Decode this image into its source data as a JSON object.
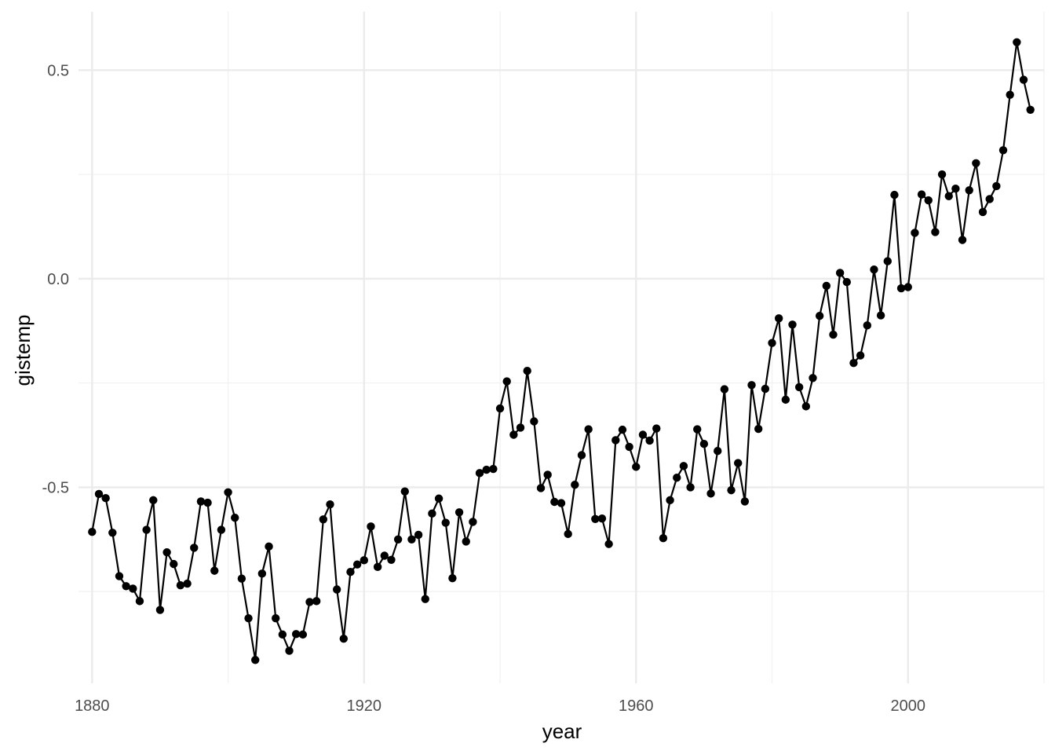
{
  "chart_data": {
    "type": "line",
    "title": "",
    "xlabel": "year",
    "ylabel": "gistemp",
    "xlim": [
      1878,
      2020
    ],
    "ylim": [
      -0.97,
      0.64
    ],
    "x_ticks": [
      1880,
      1920,
      1960,
      2000
    ],
    "x_tick_labels": [
      "1880",
      "1920",
      "1960",
      "2000"
    ],
    "x_minor_ticks": [
      1900,
      1940,
      1980,
      2020
    ],
    "y_ticks": [
      0.5,
      0.0,
      -0.5
    ],
    "y_tick_labels": [
      "0.5",
      "0.0",
      "-0.5"
    ],
    "y_minor_ticks": [
      0.25,
      -0.25,
      -0.75
    ],
    "grid": true,
    "points_shown": true,
    "colors": {
      "line": "#000000",
      "point": "#000000",
      "grid_major": "#ebebeb",
      "grid_minor": "#f2f2f2"
    },
    "series": [
      {
        "x": [
          1880,
          1881,
          1882,
          1883,
          1884,
          1885,
          1886,
          1887,
          1888,
          1889,
          1890,
          1891,
          1892,
          1893,
          1894,
          1895,
          1896,
          1897,
          1898,
          1899,
          1900,
          1901,
          1902,
          1903,
          1904,
          1905,
          1906,
          1907,
          1908,
          1909,
          1910,
          1911,
          1912,
          1913,
          1914,
          1915,
          1916,
          1917,
          1918,
          1919,
          1920,
          1921,
          1922,
          1923,
          1924,
          1925,
          1926,
          1927,
          1928,
          1929,
          1930,
          1931,
          1932,
          1933,
          1934,
          1935,
          1936,
          1937,
          1938,
          1939,
          1940,
          1941,
          1942,
          1943,
          1944,
          1945,
          1946,
          1947,
          1948,
          1949,
          1950,
          1951,
          1952,
          1953,
          1954,
          1955,
          1956,
          1957,
          1958,
          1959,
          1960,
          1961,
          1962,
          1963,
          1964,
          1965,
          1966,
          1967,
          1968,
          1969,
          1970,
          1971,
          1972,
          1973,
          1974,
          1975,
          1976,
          1977,
          1978,
          1979,
          1980,
          1981,
          1982,
          1983,
          1984,
          1985,
          1986,
          1987,
          1988,
          1989,
          1990,
          1991,
          1992,
          1993,
          1994,
          1995,
          1996,
          1997,
          1998,
          1999,
          2000,
          2001,
          2002,
          2003,
          2004,
          2005,
          2006,
          2007,
          2008,
          2009,
          2010,
          2011,
          2012,
          2013,
          2014,
          2015,
          2016,
          2017,
          2018
        ],
        "values": [
          -0.607,
          -0.516,
          -0.526,
          -0.609,
          -0.713,
          -0.737,
          -0.743,
          -0.773,
          -0.602,
          -0.531,
          -0.794,
          -0.656,
          -0.684,
          -0.735,
          -0.731,
          -0.645,
          -0.534,
          -0.537,
          -0.7,
          -0.602,
          -0.512,
          -0.573,
          -0.719,
          -0.814,
          -0.914,
          -0.707,
          -0.642,
          -0.814,
          -0.853,
          -0.892,
          -0.852,
          -0.853,
          -0.775,
          -0.773,
          -0.577,
          -0.541,
          -0.745,
          -0.863,
          -0.703,
          -0.685,
          -0.675,
          -0.594,
          -0.691,
          -0.664,
          -0.674,
          -0.625,
          -0.51,
          -0.625,
          -0.614,
          -0.768,
          -0.563,
          -0.527,
          -0.585,
          -0.718,
          -0.56,
          -0.63,
          -0.583,
          -0.466,
          -0.458,
          -0.456,
          -0.311,
          -0.246,
          -0.374,
          -0.357,
          -0.221,
          -0.342,
          -0.502,
          -0.47,
          -0.535,
          -0.538,
          -0.612,
          -0.494,
          -0.423,
          -0.361,
          -0.576,
          -0.575,
          -0.636,
          -0.387,
          -0.362,
          -0.403,
          -0.451,
          -0.374,
          -0.388,
          -0.359,
          -0.622,
          -0.531,
          -0.477,
          -0.449,
          -0.5,
          -0.361,
          -0.396,
          -0.515,
          -0.413,
          -0.265,
          -0.507,
          -0.442,
          -0.534,
          -0.255,
          -0.36,
          -0.264,
          -0.154,
          -0.095,
          -0.29,
          -0.11,
          -0.26,
          -0.306,
          -0.238,
          -0.089,
          -0.017,
          -0.134,
          0.014,
          -0.008,
          -0.202,
          -0.184,
          -0.112,
          0.022,
          -0.088,
          0.042,
          0.201,
          -0.023,
          -0.02,
          0.11,
          0.202,
          0.188,
          0.112,
          0.25,
          0.198,
          0.216,
          0.093,
          0.212,
          0.277,
          0.16,
          0.191,
          0.222,
          0.308,
          0.441,
          0.567,
          0.477,
          0.405
        ]
      }
    ]
  }
}
